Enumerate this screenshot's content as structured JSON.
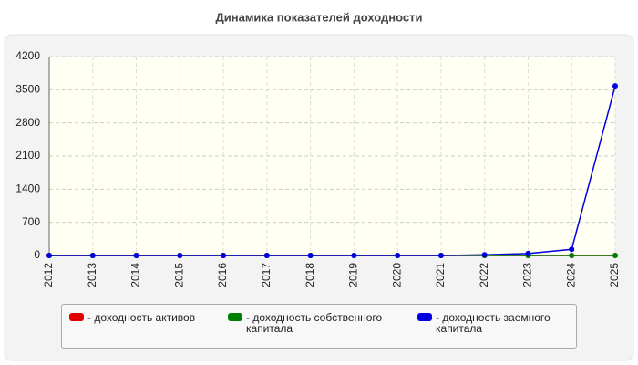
{
  "chart_data": {
    "type": "line",
    "title": "Динамика показателей доходности",
    "categories": [
      "2012",
      "2013",
      "2014",
      "2015",
      "2016",
      "2017",
      "2018",
      "2019",
      "2020",
      "2021",
      "2022",
      "2023",
      "2024",
      "2025"
    ],
    "series": [
      {
        "name": "- доходность активов",
        "color": "#e00000",
        "values": [
          0,
          0,
          0,
          0,
          0,
          0,
          0,
          0,
          0,
          0,
          0,
          0,
          0,
          0
        ]
      },
      {
        "name": "- доходность собственного капитала",
        "color": "#008000",
        "values": [
          0,
          0,
          0,
          0,
          0,
          0,
          0,
          0,
          0,
          0,
          0,
          0,
          0,
          0
        ]
      },
      {
        "name": "- доходность заемного капитала",
        "color": "#0000e0",
        "values": [
          0,
          0,
          0,
          0,
          0,
          0,
          0,
          0,
          0,
          0,
          15,
          40,
          130,
          3580
        ]
      }
    ],
    "ylim": [
      0,
      4200
    ],
    "yticks": [
      0,
      700,
      1400,
      2100,
      2800,
      3500,
      4200
    ],
    "grid": true
  }
}
